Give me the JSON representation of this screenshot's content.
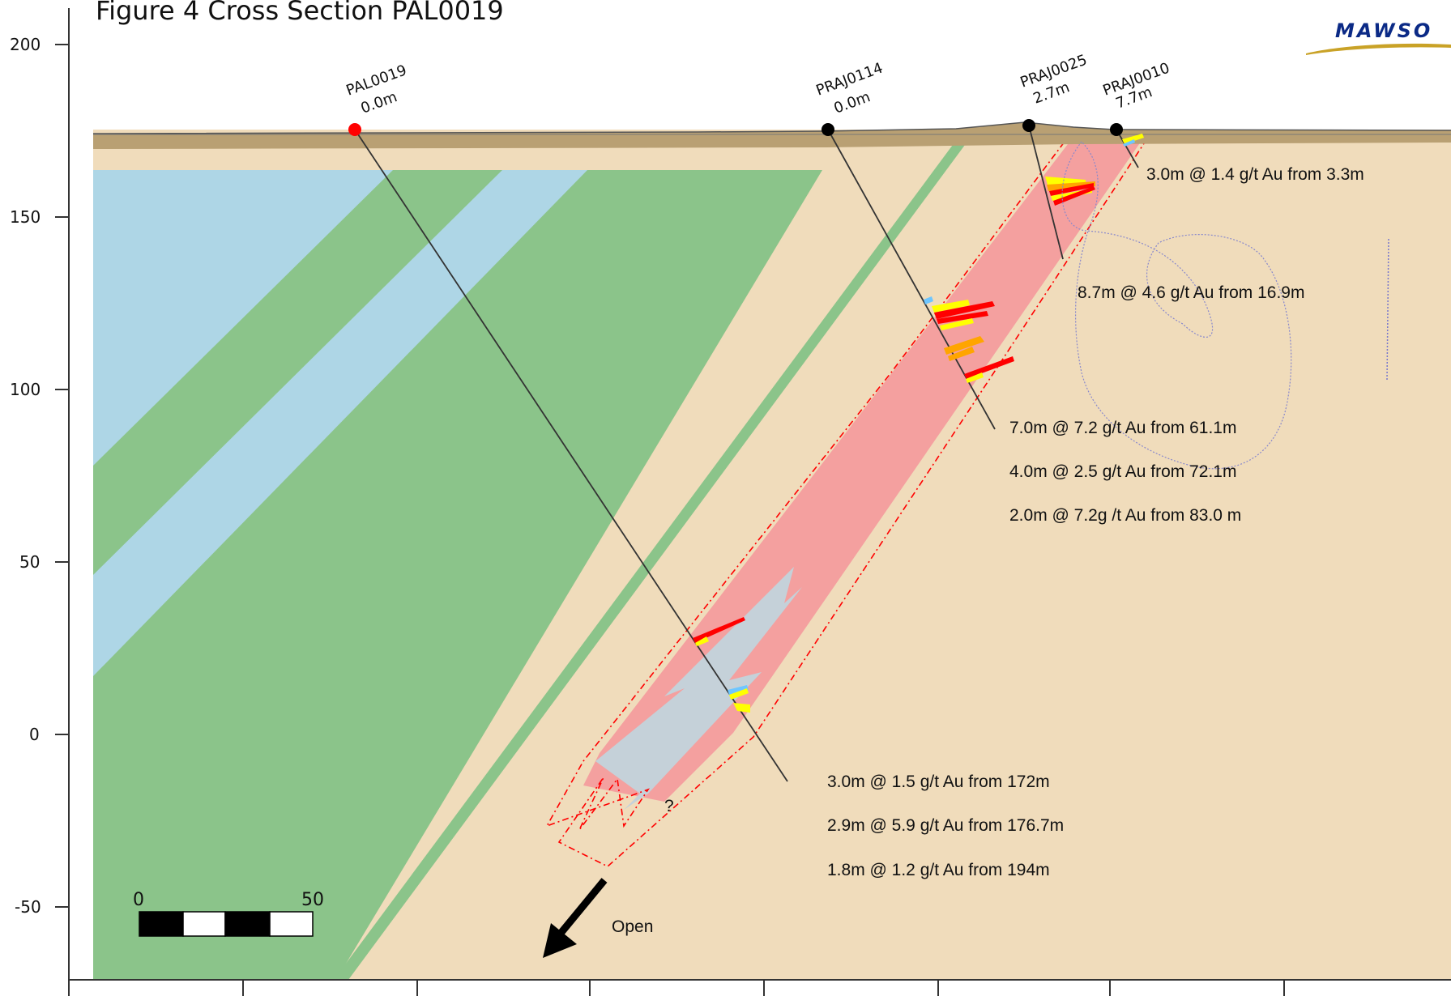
{
  "title": "Figure 4 Cross Section PAL0019",
  "logo_text": "MAWSO",
  "colors": {
    "background_unit": "#f0dcbb",
    "blue_unit": "#aed6e6",
    "green_unit": "#8bc48a",
    "mineralised_zone": "#f4a09f",
    "grey_unit": "#c5d1d9",
    "cover": "#b9a073",
    "hole_collar_target": "#ff0000",
    "hole_collar": "#000000",
    "outline": "#ff0000",
    "logo_blue": "#0b2a86",
    "logo_gold": "#c9a227"
  },
  "y_axis": {
    "ticks": [
      "200",
      "150",
      "100",
      "50",
      "0",
      "-50"
    ]
  },
  "holes": [
    {
      "id": "PAL0019",
      "depth": "0.0m"
    },
    {
      "id": "PRAJ0114",
      "depth": "0.0m"
    },
    {
      "id": "PRAJ0025",
      "depth": "2.7m"
    },
    {
      "id": "PRAJ0010",
      "depth": "7.7m"
    }
  ],
  "intercepts": [
    "3.0m @ 1.4 g/t Au from 3.3m",
    "8.7m @ 4.6 g/t Au from 16.9m",
    "7.0m @ 7.2 g/t Au from 61.1m",
    "4.0m @ 2.5 g/t Au from 72.1m",
    "2.0m @ 7.2g /t Au from 83.0 m",
    "3.0m @ 1.5 g/t Au from 172m",
    "2.9m @ 5.9 g/t Au from 176.7m",
    "1.8m @ 1.2 g/t Au from 194m"
  ],
  "question_mark": "?",
  "open_label": "Open",
  "scale_bar": {
    "start": "0",
    "end": "50"
  }
}
